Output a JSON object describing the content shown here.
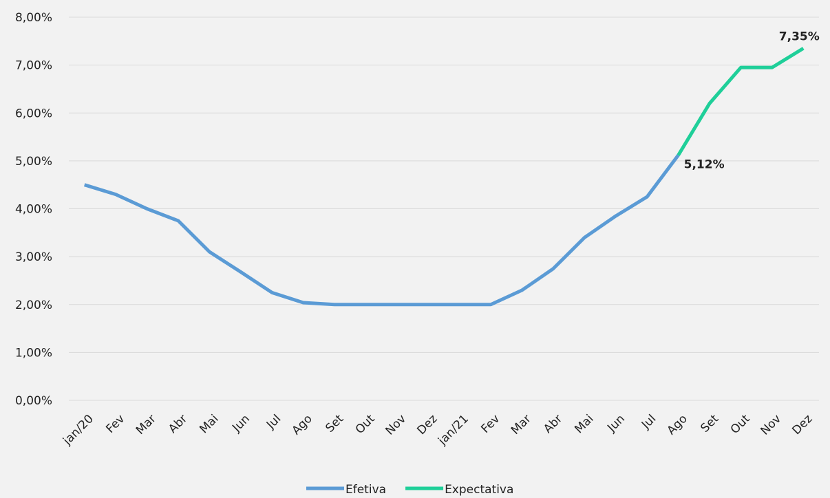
{
  "chart_data": {
    "type": "line",
    "categories": [
      "jan/20",
      "Fev",
      "Mar",
      "Abr",
      "Mai",
      "Jun",
      "Jul",
      "Ago",
      "Set",
      "Out",
      "Nov",
      "Dez",
      "jan/21",
      "Fev",
      "Mar",
      "Abr",
      "Mai",
      "Jun",
      "Jul",
      "Ago",
      "Set",
      "Out",
      "Nov",
      "Dez"
    ],
    "series": [
      {
        "name": "Efetiva",
        "color": "#5b9bd5",
        "values": [
          4.5,
          4.3,
          4.0,
          3.75,
          3.1,
          2.68,
          2.25,
          2.04,
          2.0,
          2.0,
          2.0,
          2.0,
          2.0,
          2.0,
          2.3,
          2.75,
          3.4,
          3.85,
          4.25,
          5.12,
          null,
          null,
          null,
          null
        ],
        "value_labels": [
          null,
          null,
          null,
          null,
          null,
          null,
          null,
          null,
          null,
          null,
          null,
          null,
          null,
          null,
          null,
          null,
          null,
          null,
          null,
          "5,12%",
          null,
          null,
          null,
          null
        ]
      },
      {
        "name": "Expectativa",
        "color": "#1fcf99",
        "values": [
          null,
          null,
          null,
          null,
          null,
          null,
          null,
          null,
          null,
          null,
          null,
          null,
          null,
          null,
          null,
          null,
          null,
          null,
          null,
          5.12,
          6.2,
          6.95,
          6.95,
          7.35
        ],
        "value_labels": [
          null,
          null,
          null,
          null,
          null,
          null,
          null,
          null,
          null,
          null,
          null,
          null,
          null,
          null,
          null,
          null,
          null,
          null,
          null,
          null,
          null,
          null,
          null,
          "7,35%"
        ]
      }
    ],
    "ylim": [
      0,
      8
    ],
    "yticks": [
      {
        "value": 0,
        "label": "0,00%"
      },
      {
        "value": 1,
        "label": "1,00%"
      },
      {
        "value": 2,
        "label": "2,00%"
      },
      {
        "value": 3,
        "label": "3,00%"
      },
      {
        "value": 4,
        "label": "4,00%"
      },
      {
        "value": 5,
        "label": "5,00%"
      },
      {
        "value": 6,
        "label": "6,00%"
      },
      {
        "value": 7,
        "label": "7,00%"
      },
      {
        "value": 8,
        "label": "8,00%"
      }
    ],
    "grid": true,
    "legend": "bottom"
  }
}
